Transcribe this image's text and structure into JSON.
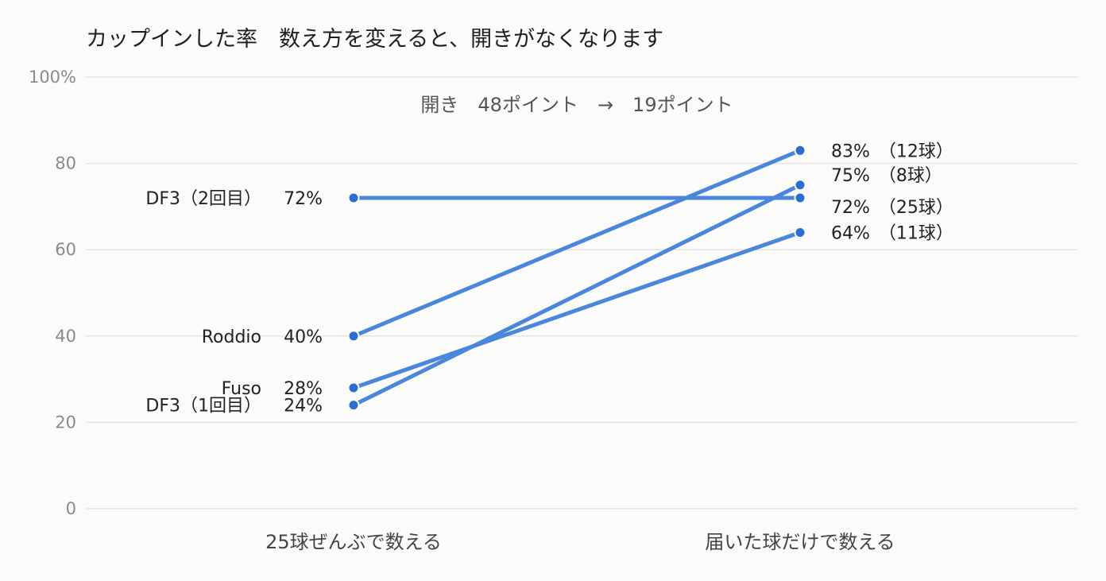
{
  "chart_data": {
    "type": "line",
    "title": "カップインした率　数え方を変えると、開きがなくなります",
    "subtitle": "開き　48ポイント　→　19ポイント",
    "categories": [
      "25球ぜんぶで数える",
      "届いた球だけで数える"
    ],
    "ylim": [
      0,
      100
    ],
    "y_ticks": [
      "0",
      "20",
      "40",
      "60",
      "80",
      "100%"
    ],
    "y_tick_values": [
      0,
      20,
      40,
      60,
      80,
      100
    ],
    "grid": true,
    "color": "#4a86dc",
    "point_color": "#2a6fd0",
    "series": [
      {
        "name": "DF3（2回目）",
        "values": [
          72,
          72
        ],
        "left_label": "72%",
        "right_label": "72%　（25球）"
      },
      {
        "name": "Roddio",
        "values": [
          40,
          83
        ],
        "left_label": "40%",
        "right_label": "83%　（12球）"
      },
      {
        "name": "Fuso",
        "values": [
          28,
          64
        ],
        "left_label": "28%",
        "right_label": "64%　（11球）"
      },
      {
        "name": "DF3（1回目）",
        "values": [
          24,
          75
        ],
        "left_label": "24%",
        "right_label": "75%　（8球）"
      }
    ]
  }
}
